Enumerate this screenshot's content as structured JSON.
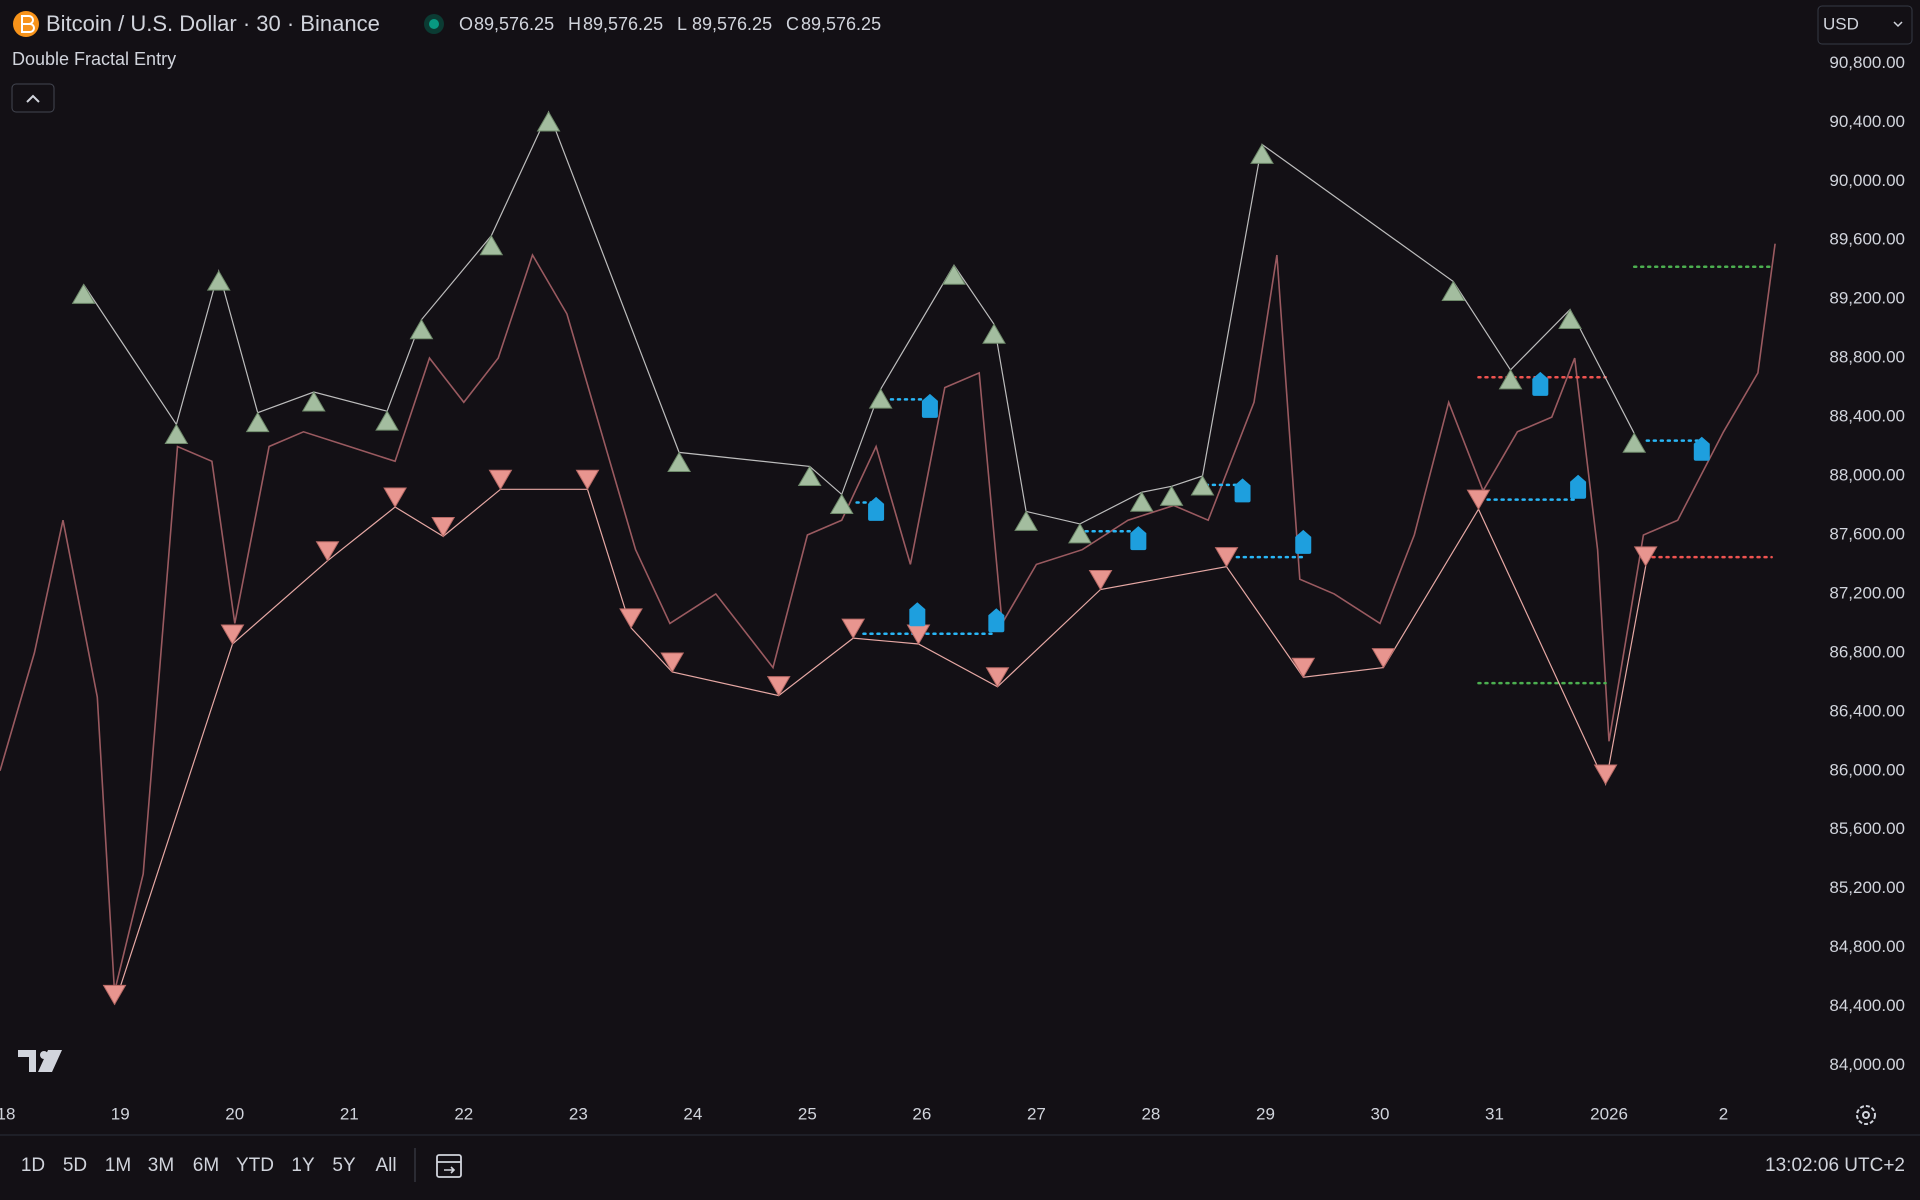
{
  "header": {
    "symbol": "Bitcoin / U.S. Dollar · 30 · Binance",
    "ohlc": [
      {
        "key": "O",
        "value": "89,576.25"
      },
      {
        "key": "H",
        "value": "89,576.25"
      },
      {
        "key": "L",
        "value": "89,576.25"
      },
      {
        "key": "C",
        "value": "89,576.25"
      }
    ],
    "indicator": "Double Fractal Entry",
    "currency": "USD"
  },
  "chart_data": {
    "type": "line",
    "color": "#9a5a60",
    "x": [
      -0.05,
      0.25,
      0.5,
      0.8,
      0.95,
      1.2,
      1.5,
      1.8,
      2.0,
      2.3,
      2.6,
      3.0,
      3.4,
      3.7,
      4.0,
      4.3,
      4.6,
      4.9,
      5.2,
      5.5,
      5.8,
      6.2,
      6.7,
      7.0,
      7.3,
      7.6,
      7.9,
      8.2,
      8.5,
      8.7,
      9.0,
      9.4,
      9.8,
      10.2,
      10.5,
      10.9,
      11.1,
      11.3,
      11.6,
      12.0,
      12.3,
      12.6,
      12.9,
      13.2,
      13.5,
      13.7,
      13.9,
      14.0,
      14.3,
      14.6,
      15.0,
      15.3,
      15.45
    ],
    "values": [
      86000,
      86800,
      87700,
      86500,
      84500,
      85300,
      88200,
      88100,
      87000,
      88200,
      88300,
      88200,
      88100,
      88800,
      88500,
      88800,
      89500,
      89100,
      88300,
      87500,
      87000,
      87200,
      86700,
      87600,
      87700,
      88200,
      87400,
      88600,
      88700,
      87000,
      87400,
      87500,
      87700,
      87800,
      87700,
      88500,
      89500,
      87300,
      87200,
      87000,
      87600,
      88500,
      87900,
      88300,
      88400,
      88800,
      87500,
      86200,
      87600,
      87700,
      88300,
      88700,
      89576.25
    ],
    "xlim": [
      -0.05,
      15.72
    ],
    "ylim": [
      83800,
      91230
    ],
    "grid": false,
    "xticks": [
      {
        "value": 0,
        "label": "18"
      },
      {
        "value": 1,
        "label": "19"
      },
      {
        "value": 2,
        "label": "20"
      },
      {
        "value": 3,
        "label": "21"
      },
      {
        "value": 4,
        "label": "22"
      },
      {
        "value": 5,
        "label": "23"
      },
      {
        "value": 6,
        "label": "24"
      },
      {
        "value": 7,
        "label": "25"
      },
      {
        "value": 8,
        "label": "26"
      },
      {
        "value": 9,
        "label": "27"
      },
      {
        "value": 10,
        "label": "28"
      },
      {
        "value": 11,
        "label": "29"
      },
      {
        "value": 12,
        "label": "30"
      },
      {
        "value": 13,
        "label": "31"
      },
      {
        "value": 14,
        "label": "2026"
      },
      {
        "value": 15,
        "label": "2"
      }
    ],
    "yticks": [
      {
        "value": 84000,
        "label": "84,000.00"
      },
      {
        "value": 84400,
        "label": "84,400.00"
      },
      {
        "value": 84800,
        "label": "84,800.00"
      },
      {
        "value": 85200,
        "label": "85,200.00"
      },
      {
        "value": 85600,
        "label": "85,600.00"
      },
      {
        "value": 86000,
        "label": "86,000.00"
      },
      {
        "value": 86400,
        "label": "86,400.00"
      },
      {
        "value": 86800,
        "label": "86,800.00"
      },
      {
        "value": 87200,
        "label": "87,200.00"
      },
      {
        "value": 87600,
        "label": "87,600.00"
      },
      {
        "value": 88000,
        "label": "88,000.00"
      },
      {
        "value": 88400,
        "label": "88,400.00"
      },
      {
        "value": 88800,
        "label": "88,800.00"
      },
      {
        "value": 89200,
        "label": "89,200.00"
      },
      {
        "value": 89600,
        "label": "89,600.00"
      },
      {
        "value": 90000,
        "label": "90,000.00"
      },
      {
        "value": 90400,
        "label": "90,400.00"
      },
      {
        "value": 90800,
        "label": "90,800.00"
      }
    ],
    "fractal_highs": {
      "color": "#a3bd9f",
      "line_color": "#bdbdbd",
      "x": [
        0.68,
        1.49,
        1.86,
        2.2,
        2.69,
        3.33,
        3.63,
        4.24,
        4.74,
        5.88,
        7.02,
        7.3,
        7.64,
        8.28,
        8.63,
        8.91,
        9.38,
        9.92,
        10.18,
        10.45,
        10.97,
        12.64,
        13.14,
        13.66,
        14.22
      ],
      "values": [
        89300,
        88350,
        89390,
        88430,
        88570,
        88440,
        89060,
        89630,
        90470,
        88160,
        88065,
        87875,
        88590,
        89430,
        89030,
        87760,
        87675,
        87890,
        87930,
        88000,
        90250,
        89320,
        88720,
        89130,
        88290
      ]
    },
    "fractal_lows": {
      "color": "#e8958f",
      "line_color": "#e6a8a4",
      "x": [
        0.95,
        1.98,
        2.81,
        3.4,
        3.82,
        4.32,
        5.08,
        5.46,
        5.82,
        6.75,
        7.4,
        7.97,
        8.66,
        9.56,
        10.66,
        11.33,
        12.03,
        12.86,
        13.97,
        14.32
      ],
      "values": [
        84415,
        86860,
        87425,
        87790,
        87590,
        87910,
        87910,
        86970,
        86670,
        86510,
        86900,
        86860,
        86570,
        87230,
        87385,
        86635,
        86700,
        87775,
        85910,
        87390
      ]
    },
    "entries": {
      "color": "#1e9fde",
      "x": [
        7.6,
        8.07,
        7.96,
        8.65,
        9.89,
        10.8,
        11.33,
        13.4,
        13.73,
        14.81
      ],
      "values": [
        87757,
        88456,
        87042,
        87001,
        87558,
        87882,
        87533,
        88605,
        87907,
        88165
      ]
    },
    "levels": [
      {
        "x": [
          7.73,
          8.07
        ],
        "value": 88520,
        "color": "#29b6f6"
      },
      {
        "x": [
          7.43,
          7.6
        ],
        "value": 87820,
        "color": "#29b6f6"
      },
      {
        "x": [
          7.49,
          8.65
        ],
        "value": 86930,
        "color": "#29b6f6"
      },
      {
        "x": [
          9.43,
          9.89
        ],
        "value": 87625,
        "color": "#29b6f6"
      },
      {
        "x": [
          10.48,
          10.8
        ],
        "value": 87940,
        "color": "#29b6f6"
      },
      {
        "x": [
          10.75,
          11.33
        ],
        "value": 87450,
        "color": "#29b6f6"
      },
      {
        "x": [
          12.94,
          13.73
        ],
        "value": 87840,
        "color": "#29b6f6"
      },
      {
        "x": [
          14.33,
          14.81
        ],
        "value": 88240,
        "color": "#29b6f6"
      },
      {
        "x": [
          12.86,
          13.97
        ],
        "value": 88670,
        "color": "#ef5350"
      },
      {
        "x": [
          14.38,
          15.42
        ],
        "value": 87450,
        "color": "#ef5350"
      },
      {
        "x": [
          14.22,
          15.42
        ],
        "value": 89420,
        "color": "#4caf50"
      },
      {
        "x": [
          12.86,
          13.97
        ],
        "value": 86595,
        "color": "#4caf50"
      }
    ]
  },
  "toolbar": {
    "ranges": [
      "1D",
      "5D",
      "1M",
      "3M",
      "6M",
      "YTD",
      "1Y",
      "5Y",
      "All"
    ],
    "clock": "13:02:06 UTC+2"
  }
}
